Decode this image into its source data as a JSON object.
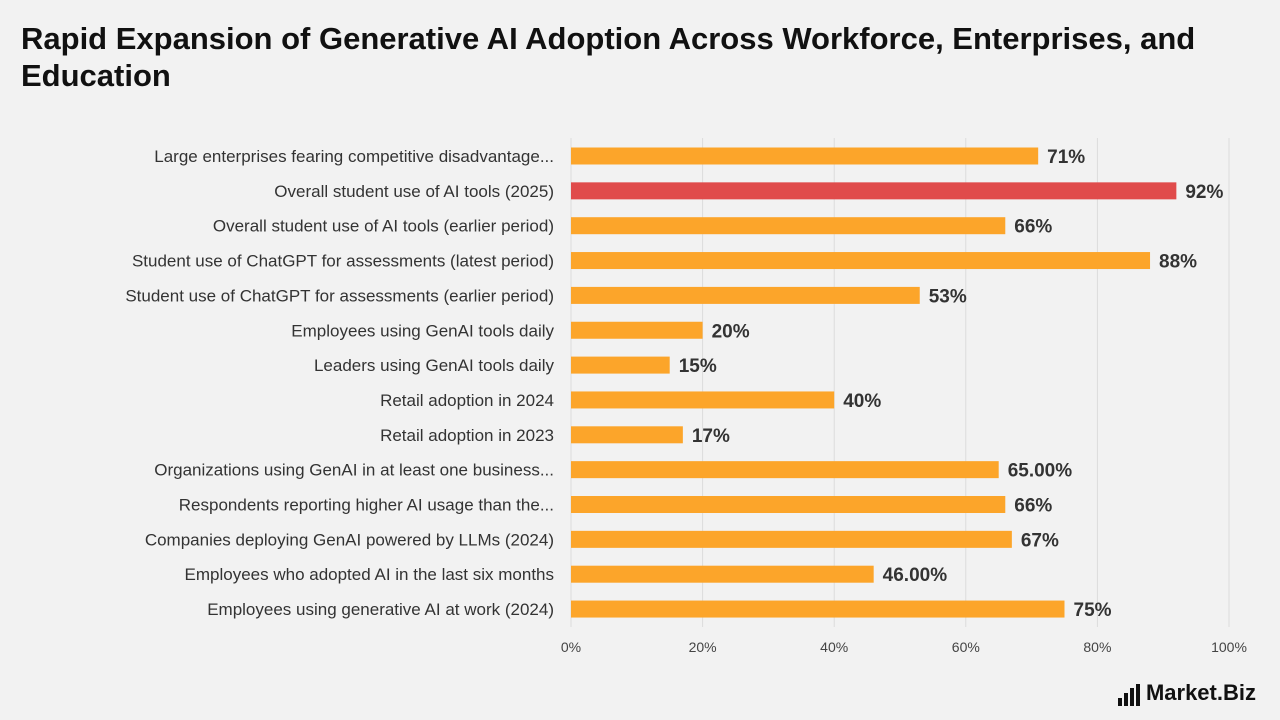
{
  "chart_data": {
    "type": "bar",
    "orientation": "horizontal",
    "title": "Rapid Expansion of Generative AI Adoption Across Workforce, Enterprises, and Education",
    "xlabel": "",
    "ylabel": "",
    "xlim": [
      0,
      100
    ],
    "x_ticks": [
      "0%",
      "20%",
      "40%",
      "60%",
      "80%",
      "100%"
    ],
    "x_tick_values": [
      0,
      20,
      40,
      60,
      80,
      100
    ],
    "grid": true,
    "categories": [
      "Large enterprises fearing competitive disadvantage...",
      "Overall student use of AI tools (2025)",
      "Overall student use of AI tools (earlier period)",
      "Student use of ChatGPT for assessments (latest period)",
      "Student use of ChatGPT for assessments (earlier period)",
      "Employees using GenAI tools daily",
      "Leaders using GenAI tools daily",
      "Retail adoption in 2024",
      "Retail adoption in 2023",
      "Organizations using GenAI in at least one business...",
      "Respondents reporting higher AI usage than the...",
      "Companies deploying GenAI powered by LLMs (2024)",
      "Employees who adopted AI in the last six months",
      "Employees using generative AI at work (2024)"
    ],
    "values": [
      71,
      92,
      66,
      88,
      53,
      20,
      15,
      40,
      17,
      65,
      66,
      67,
      46,
      75
    ],
    "value_labels": [
      "71%",
      "92%",
      "66%",
      "88%",
      "53%",
      "20%",
      "15%",
      "40%",
      "17%",
      "65.00%",
      "66%",
      "67%",
      "46.00%",
      "75%"
    ],
    "colors": [
      "#fca52a",
      "#e04b4b",
      "#fca52a",
      "#fca52a",
      "#fca52a",
      "#fca52a",
      "#fca52a",
      "#fca52a",
      "#fca52a",
      "#fca52a",
      "#fca52a",
      "#fca52a",
      "#fca52a",
      "#fca52a"
    ],
    "grid_color": "#dcdcdc"
  },
  "brand": {
    "logo_text": "Market.Biz"
  }
}
